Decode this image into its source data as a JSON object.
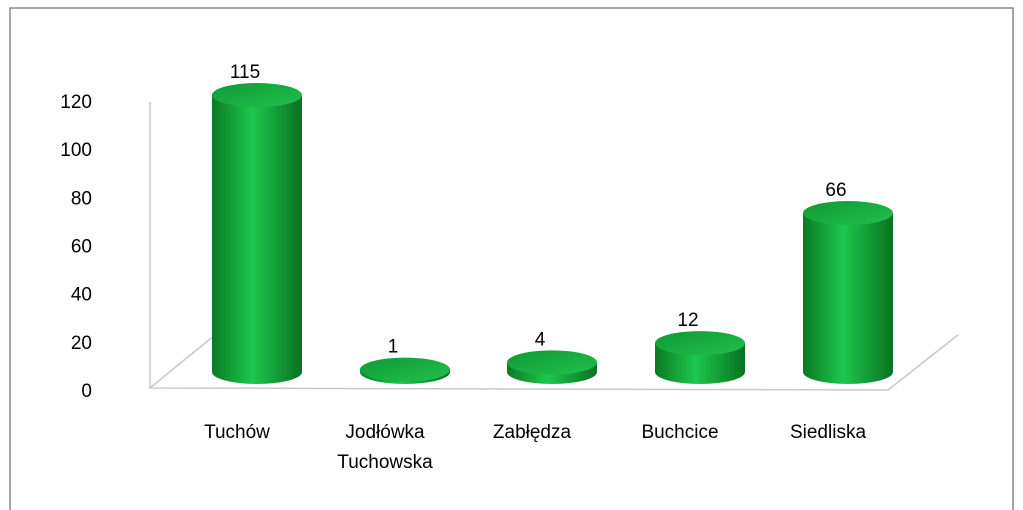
{
  "chart_data": {
    "type": "bar",
    "categories": [
      "Tuchów",
      "Jodłówka Tuchowska",
      "Zabłędza",
      "Buchcice",
      "Siedliska"
    ],
    "values": [
      115,
      1,
      4,
      12,
      66
    ],
    "color": "#13a83a",
    "ylim": [
      0,
      120
    ],
    "yticks": [
      0,
      20,
      40,
      60,
      80,
      100,
      120
    ]
  }
}
